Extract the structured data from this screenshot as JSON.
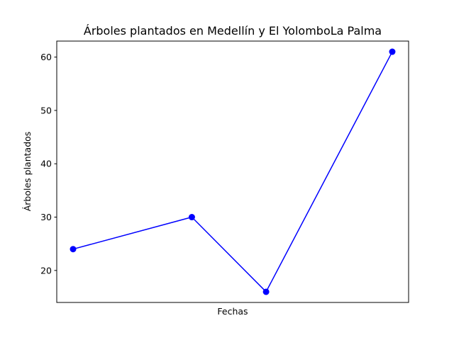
{
  "chart_data": {
    "type": "line",
    "title": "Árboles plantados en Medellín y El YolomboLa Palma",
    "xlabel": "Fechas",
    "ylabel": "Árboles plantados",
    "x": [
      0,
      1.6,
      2.6,
      4.3
    ],
    "xlim": [
      -0.22,
      4.52
    ],
    "ylim": [
      14,
      63
    ],
    "yticks": [
      20,
      30,
      40,
      50,
      60
    ],
    "grid": false,
    "series": [
      {
        "values": [
          24,
          30,
          16,
          61
        ],
        "color": "#0000ff",
        "marker": "circle"
      }
    ]
  }
}
